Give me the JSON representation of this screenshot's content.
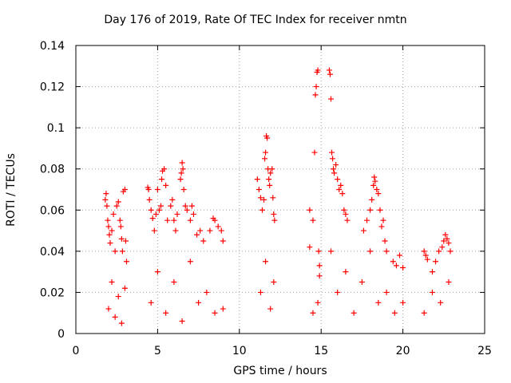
{
  "chart_data": {
    "type": "scatter",
    "title": "Day 176 of 2019, Rate Of TEC Index for receiver nmtn",
    "xlabel": "GPS time / hours",
    "ylabel": "ROTI / TECUs",
    "xlim": [
      0,
      25
    ],
    "ylim": [
      0,
      0.14
    ],
    "xticks": [
      "0",
      "5",
      "10",
      "15",
      "20",
      "25"
    ],
    "yticks": [
      "0",
      "0.02",
      "0.04",
      "0.06",
      "0.08",
      "0.1",
      "0.12",
      "0.14"
    ],
    "grid": true,
    "marker": "+",
    "color": "#ff0000",
    "series": [
      {
        "points": [
          [
            1.8,
            0.065
          ],
          [
            1.85,
            0.068
          ],
          [
            1.9,
            0.062
          ],
          [
            1.95,
            0.055
          ],
          [
            2.0,
            0.052
          ],
          [
            2.05,
            0.048
          ],
          [
            2.1,
            0.044
          ],
          [
            2.2,
            0.05
          ],
          [
            2.3,
            0.058
          ],
          [
            2.4,
            0.04
          ],
          [
            2.5,
            0.062
          ],
          [
            2.6,
            0.064
          ],
          [
            2.7,
            0.055
          ],
          [
            2.75,
            0.052
          ],
          [
            2.8,
            0.046
          ],
          [
            2.85,
            0.04
          ],
          [
            2.9,
            0.069
          ],
          [
            3.0,
            0.07
          ],
          [
            3.05,
            0.045
          ],
          [
            3.1,
            0.035
          ],
          [
            4.4,
            0.071
          ],
          [
            4.45,
            0.07
          ],
          [
            4.5,
            0.065
          ],
          [
            4.6,
            0.06
          ],
          [
            4.7,
            0.056
          ],
          [
            4.8,
            0.05
          ],
          [
            4.9,
            0.058
          ],
          [
            5.0,
            0.07
          ],
          [
            5.1,
            0.06
          ],
          [
            5.2,
            0.062
          ],
          [
            5.25,
            0.075
          ],
          [
            5.3,
            0.079
          ],
          [
            5.4,
            0.08
          ],
          [
            5.5,
            0.072
          ],
          [
            5.6,
            0.055
          ],
          [
            5.8,
            0.062
          ],
          [
            5.9,
            0.065
          ],
          [
            6.0,
            0.055
          ],
          [
            6.1,
            0.05
          ],
          [
            6.2,
            0.058
          ],
          [
            6.4,
            0.075
          ],
          [
            6.45,
            0.078
          ],
          [
            6.5,
            0.083
          ],
          [
            6.55,
            0.08
          ],
          [
            6.6,
            0.07
          ],
          [
            6.7,
            0.062
          ],
          [
            6.8,
            0.06
          ],
          [
            7.0,
            0.055
          ],
          [
            7.1,
            0.062
          ],
          [
            7.2,
            0.058
          ],
          [
            7.4,
            0.048
          ],
          [
            7.6,
            0.05
          ],
          [
            7.8,
            0.045
          ],
          [
            8.2,
            0.05
          ],
          [
            8.4,
            0.056
          ],
          [
            8.5,
            0.055
          ],
          [
            8.7,
            0.052
          ],
          [
            8.9,
            0.05
          ],
          [
            9.0,
            0.045
          ],
          [
            11.1,
            0.075
          ],
          [
            11.2,
            0.07
          ],
          [
            11.3,
            0.066
          ],
          [
            11.4,
            0.06
          ],
          [
            11.5,
            0.065
          ],
          [
            11.55,
            0.085
          ],
          [
            11.6,
            0.088
          ],
          [
            11.65,
            0.096
          ],
          [
            11.7,
            0.095
          ],
          [
            11.75,
            0.08
          ],
          [
            11.8,
            0.075
          ],
          [
            11.85,
            0.072
          ],
          [
            11.9,
            0.078
          ],
          [
            12.0,
            0.08
          ],
          [
            12.05,
            0.066
          ],
          [
            12.1,
            0.058
          ],
          [
            12.15,
            0.055
          ],
          [
            14.3,
            0.06
          ],
          [
            14.3,
            0.042
          ],
          [
            14.5,
            0.055
          ],
          [
            14.6,
            0.088
          ],
          [
            14.65,
            0.116
          ],
          [
            14.7,
            0.12
          ],
          [
            14.75,
            0.127
          ],
          [
            14.8,
            0.128
          ],
          [
            14.85,
            0.04
          ],
          [
            14.9,
            0.033
          ],
          [
            14.9,
            0.028
          ],
          [
            15.5,
            0.128
          ],
          [
            15.55,
            0.126
          ],
          [
            15.6,
            0.114
          ],
          [
            15.65,
            0.088
          ],
          [
            15.7,
            0.085
          ],
          [
            15.75,
            0.08
          ],
          [
            15.8,
            0.078
          ],
          [
            15.9,
            0.082
          ],
          [
            16.0,
            0.075
          ],
          [
            16.1,
            0.07
          ],
          [
            16.2,
            0.072
          ],
          [
            16.3,
            0.068
          ],
          [
            16.4,
            0.06
          ],
          [
            16.5,
            0.058
          ],
          [
            16.6,
            0.055
          ],
          [
            17.6,
            0.05
          ],
          [
            17.8,
            0.055
          ],
          [
            18.0,
            0.06
          ],
          [
            18.1,
            0.065
          ],
          [
            18.2,
            0.072
          ],
          [
            18.25,
            0.076
          ],
          [
            18.3,
            0.074
          ],
          [
            18.4,
            0.07
          ],
          [
            18.5,
            0.068
          ],
          [
            18.6,
            0.06
          ],
          [
            18.7,
            0.052
          ],
          [
            18.8,
            0.055
          ],
          [
            18.9,
            0.045
          ],
          [
            19.0,
            0.04
          ],
          [
            19.4,
            0.035
          ],
          [
            19.6,
            0.033
          ],
          [
            19.8,
            0.038
          ],
          [
            20.0,
            0.032
          ],
          [
            21.3,
            0.04
          ],
          [
            21.4,
            0.038
          ],
          [
            21.5,
            0.036
          ],
          [
            21.8,
            0.03
          ],
          [
            22.0,
            0.035
          ],
          [
            22.2,
            0.04
          ],
          [
            22.4,
            0.042
          ],
          [
            22.5,
            0.045
          ],
          [
            22.6,
            0.048
          ],
          [
            22.7,
            0.046
          ],
          [
            22.8,
            0.044
          ],
          [
            22.9,
            0.04
          ],
          [
            2.0,
            0.012
          ],
          [
            2.2,
            0.025
          ],
          [
            2.4,
            0.008
          ],
          [
            2.6,
            0.018
          ],
          [
            2.8,
            0.005
          ],
          [
            3.0,
            0.022
          ],
          [
            4.6,
            0.015
          ],
          [
            5.0,
            0.03
          ],
          [
            5.5,
            0.01
          ],
          [
            6.0,
            0.025
          ],
          [
            6.5,
            0.006
          ],
          [
            7.0,
            0.035
          ],
          [
            7.5,
            0.015
          ],
          [
            8.0,
            0.02
          ],
          [
            8.5,
            0.01
          ],
          [
            9.0,
            0.012
          ],
          [
            11.3,
            0.02
          ],
          [
            11.6,
            0.035
          ],
          [
            11.9,
            0.012
          ],
          [
            12.1,
            0.025
          ],
          [
            14.5,
            0.01
          ],
          [
            14.8,
            0.015
          ],
          [
            15.6,
            0.04
          ],
          [
            16.0,
            0.02
          ],
          [
            16.5,
            0.03
          ],
          [
            17.0,
            0.01
          ],
          [
            17.5,
            0.025
          ],
          [
            18.0,
            0.04
          ],
          [
            18.5,
            0.015
          ],
          [
            19.0,
            0.02
          ],
          [
            19.5,
            0.01
          ],
          [
            20.0,
            0.015
          ],
          [
            21.3,
            0.01
          ],
          [
            21.8,
            0.02
          ],
          [
            22.3,
            0.015
          ],
          [
            22.8,
            0.025
          ]
        ]
      }
    ]
  }
}
